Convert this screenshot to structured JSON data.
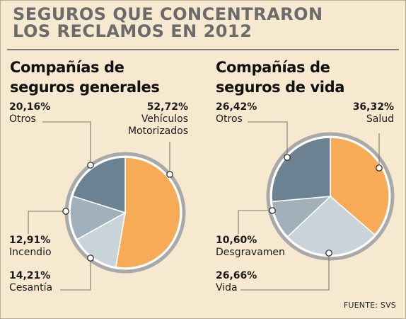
{
  "headline": [
    "SEGUROS QUE CONCENTRARON",
    "LOS RECLAMOS EN 2012"
  ],
  "source": "FUENTE: SVS",
  "colors": {
    "orange": "#f7ab57",
    "slate": "#6a8292",
    "gray_blue": "#a1b0ba",
    "light_blue": "#c9d4da",
    "ring": "#a9a9a9",
    "background": "#f6e9cf"
  },
  "chart_data": [
    {
      "type": "pie",
      "title": [
        "Compañías de",
        "seguros generales"
      ],
      "slices": [
        {
          "pct_label": "52,72%",
          "name": [
            "Vehículos",
            "Motorizados"
          ],
          "value": 52.72,
          "color": "#f7ab57"
        },
        {
          "pct_label": "14,21%",
          "name": [
            "Cesantía"
          ],
          "value": 14.21,
          "color": "#c9d4da"
        },
        {
          "pct_label": "12,91%",
          "name": [
            "Incendio"
          ],
          "value": 12.91,
          "color": "#a1b0ba"
        },
        {
          "pct_label": "20,16%",
          "name": [
            "Otros"
          ],
          "value": 20.16,
          "color": "#6a8292"
        }
      ]
    },
    {
      "type": "pie",
      "title": [
        "Compañías de",
        "seguros de vida"
      ],
      "slices": [
        {
          "pct_label": "36,32%",
          "name": [
            "Salud"
          ],
          "value": 36.32,
          "color": "#f7ab57"
        },
        {
          "pct_label": "26,66%",
          "name": [
            "Vida"
          ],
          "value": 26.66,
          "color": "#c9d4da"
        },
        {
          "pct_label": "10,60%",
          "name": [
            "Desgravamen"
          ],
          "value": 10.6,
          "color": "#a1b0ba"
        },
        {
          "pct_label": "26,42%",
          "name": [
            "Otros"
          ],
          "value": 26.42,
          "color": "#6a8292"
        }
      ]
    }
  ]
}
